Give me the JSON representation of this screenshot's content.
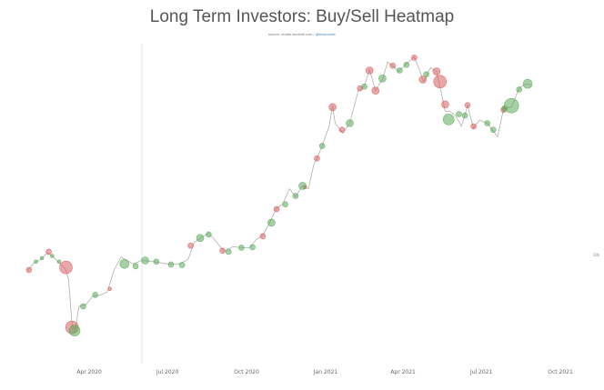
{
  "chart_data": {
    "type": "scatter",
    "title": "Long Term Investors: Buy/Sell Heatmap",
    "subtitle": "source: charts.woobull.com / ",
    "subtitle_link": "@woonomic",
    "xlabel": "",
    "ylabel": "",
    "y_scale": "log",
    "grid": false,
    "x_ticks": [
      {
        "date": "2020-04-01",
        "label": "Apr 2020"
      },
      {
        "date": "2020-07-01",
        "label": "Jul 2020"
      },
      {
        "date": "2020-10-01",
        "label": "Oct 2020"
      },
      {
        "date": "2021-01-01",
        "label": "Jan 2021"
      },
      {
        "date": "2021-04-01",
        "label": "Apr 2021"
      },
      {
        "date": "2021-07-01",
        "label": "Jul 2021"
      },
      {
        "date": "2021-10-01",
        "label": "Oct 2021"
      }
    ],
    "xlim": [
      "2020-01-20",
      "2021-10-20"
    ],
    "ylim": [
      3800,
      70000
    ],
    "y_tick_labels": [
      "10k"
    ],
    "colors": {
      "buy": "#5aaa5a",
      "sell": "#d95f5f"
    },
    "series": [
      {
        "type": "price",
        "points": [
          [
            "2020-01-20",
            8600
          ],
          [
            "2020-01-28",
            9300
          ],
          [
            "2020-02-05",
            9600
          ],
          [
            "2020-02-12",
            10200
          ],
          [
            "2020-02-18",
            9900
          ],
          [
            "2020-02-26",
            9300
          ],
          [
            "2020-03-04",
            8800
          ],
          [
            "2020-03-08",
            8000
          ],
          [
            "2020-03-12",
            5200
          ],
          [
            "2020-03-16",
            5000
          ],
          [
            "2020-03-20",
            6200
          ],
          [
            "2020-03-28",
            6300
          ],
          [
            "2020-04-05",
            6800
          ],
          [
            "2020-04-15",
            6900
          ],
          [
            "2020-04-22",
            7100
          ],
          [
            "2020-04-30",
            8700
          ],
          [
            "2020-05-08",
            9800
          ],
          [
            "2020-05-15",
            9500
          ],
          [
            "2020-05-22",
            9200
          ],
          [
            "2020-06-01",
            9500
          ],
          [
            "2020-06-15",
            9400
          ],
          [
            "2020-07-01",
            9200
          ],
          [
            "2020-07-15",
            9200
          ],
          [
            "2020-07-25",
            9600
          ],
          [
            "2020-08-01",
            11200
          ],
          [
            "2020-08-10",
            11800
          ],
          [
            "2020-08-18",
            12200
          ],
          [
            "2020-08-25",
            11500
          ],
          [
            "2020-09-05",
            10300
          ],
          [
            "2020-09-15",
            10800
          ],
          [
            "2020-09-25",
            10700
          ],
          [
            "2020-10-05",
            10700
          ],
          [
            "2020-10-12",
            11500
          ],
          [
            "2020-10-20",
            12000
          ],
          [
            "2020-10-28",
            13500
          ],
          [
            "2020-11-05",
            15500
          ],
          [
            "2020-11-12",
            16000
          ],
          [
            "2020-11-20",
            18500
          ],
          [
            "2020-11-27",
            17200
          ],
          [
            "2020-12-05",
            19000
          ],
          [
            "2020-12-12",
            18500
          ],
          [
            "2020-12-18",
            23000
          ],
          [
            "2020-12-27",
            27000
          ],
          [
            "2021-01-05",
            33000
          ],
          [
            "2021-01-09",
            40000
          ],
          [
            "2021-01-12",
            34000
          ],
          [
            "2021-01-21",
            31000
          ],
          [
            "2021-01-29",
            34000
          ],
          [
            "2021-02-08",
            46000
          ],
          [
            "2021-02-15",
            48000
          ],
          [
            "2021-02-21",
            56000
          ],
          [
            "2021-02-28",
            46000
          ],
          [
            "2021-03-08",
            51000
          ],
          [
            "2021-03-14",
            60000
          ],
          [
            "2021-03-20",
            58000
          ],
          [
            "2021-03-27",
            55000
          ],
          [
            "2021-04-05",
            59000
          ],
          [
            "2021-04-14",
            63000
          ],
          [
            "2021-04-20",
            56000
          ],
          [
            "2021-04-25",
            50000
          ],
          [
            "2021-05-03",
            57000
          ],
          [
            "2021-05-10",
            55000
          ],
          [
            "2021-05-15",
            46000
          ],
          [
            "2021-05-20",
            38000
          ],
          [
            "2021-05-25",
            38000
          ],
          [
            "2021-06-01",
            36500
          ],
          [
            "2021-06-08",
            33000
          ],
          [
            "2021-06-15",
            40000
          ],
          [
            "2021-06-22",
            32500
          ],
          [
            "2021-06-29",
            35000
          ],
          [
            "2021-07-08",
            34000
          ],
          [
            "2021-07-20",
            30000
          ],
          [
            "2021-07-27",
            39000
          ],
          [
            "2021-08-05",
            39500
          ],
          [
            "2021-08-14",
            47000
          ],
          [
            "2021-08-22",
            49000
          ],
          [
            "2021-08-28",
            48500
          ]
        ]
      },
      {
        "type": "sell",
        "name": "",
        "points": [
          [
            "2020-01-22",
            8700,
            3
          ],
          [
            "2020-02-14",
            10300,
            3
          ],
          [
            "2020-03-05",
            8900,
            7
          ],
          [
            "2020-03-12",
            5100,
            7
          ],
          [
            "2020-04-25",
            7300,
            2
          ],
          [
            "2020-07-28",
            10900,
            3
          ],
          [
            "2020-09-03",
            10400,
            3
          ],
          [
            "2020-10-20",
            11900,
            3
          ],
          [
            "2020-11-05",
            15300,
            3
          ],
          [
            "2020-12-08",
            18800,
            2
          ],
          [
            "2020-12-22",
            24500,
            3
          ],
          [
            "2021-01-09",
            39500,
            4
          ],
          [
            "2021-01-20",
            32000,
            3
          ],
          [
            "2021-02-10",
            47000,
            3
          ],
          [
            "2021-02-21",
            55500,
            4
          ],
          [
            "2021-02-28",
            46000,
            4
          ],
          [
            "2021-03-20",
            58000,
            3
          ],
          [
            "2021-04-14",
            62500,
            3
          ],
          [
            "2021-04-24",
            51000,
            4
          ],
          [
            "2021-05-10",
            55000,
            4
          ],
          [
            "2021-05-14",
            50000,
            7
          ],
          [
            "2021-05-20",
            40500,
            4
          ],
          [
            "2021-06-15",
            40200,
            3
          ],
          [
            "2021-06-22",
            33000,
            3
          ],
          [
            "2021-07-27",
            38500,
            3
          ]
        ]
      },
      {
        "type": "buy",
        "name": "",
        "points": [
          [
            "2020-01-30",
            9400,
            2
          ],
          [
            "2020-02-06",
            9700,
            2
          ],
          [
            "2020-02-18",
            9900,
            2
          ],
          [
            "2020-02-26",
            9400,
            2
          ],
          [
            "2020-03-15",
            4950,
            6
          ],
          [
            "2020-03-25",
            6200,
            3
          ],
          [
            "2020-04-08",
            6900,
            3
          ],
          [
            "2020-05-12",
            9200,
            5
          ],
          [
            "2020-05-25",
            9000,
            3
          ],
          [
            "2020-06-05",
            9500,
            4
          ],
          [
            "2020-06-18",
            9400,
            3
          ],
          [
            "2020-07-05",
            9150,
            3
          ],
          [
            "2020-07-18",
            9100,
            3
          ],
          [
            "2020-08-08",
            11700,
            4
          ],
          [
            "2020-08-18",
            12100,
            3
          ],
          [
            "2020-09-10",
            10300,
            3
          ],
          [
            "2020-09-25",
            10700,
            3
          ],
          [
            "2020-10-08",
            10750,
            3
          ],
          [
            "2020-10-30",
            13500,
            4
          ],
          [
            "2020-11-15",
            16000,
            3
          ],
          [
            "2020-11-27",
            17300,
            3
          ],
          [
            "2020-12-05",
            19000,
            4
          ],
          [
            "2020-12-28",
            27500,
            3
          ],
          [
            "2021-01-29",
            34000,
            4
          ],
          [
            "2021-02-15",
            47800,
            3
          ],
          [
            "2021-03-08",
            51500,
            4
          ],
          [
            "2021-03-28",
            55500,
            3
          ],
          [
            "2021-04-05",
            58500,
            3
          ],
          [
            "2021-04-28",
            53500,
            3
          ],
          [
            "2021-05-24",
            35200,
            6
          ],
          [
            "2021-06-05",
            37000,
            3
          ],
          [
            "2021-06-12",
            36500,
            3
          ],
          [
            "2021-07-08",
            34000,
            3
          ],
          [
            "2021-07-15",
            32000,
            3
          ],
          [
            "2021-07-28",
            39000,
            3
          ],
          [
            "2021-08-05",
            40000,
            8
          ],
          [
            "2021-08-14",
            46500,
            3
          ],
          [
            "2021-08-24",
            49000,
            5
          ]
        ]
      }
    ]
  }
}
